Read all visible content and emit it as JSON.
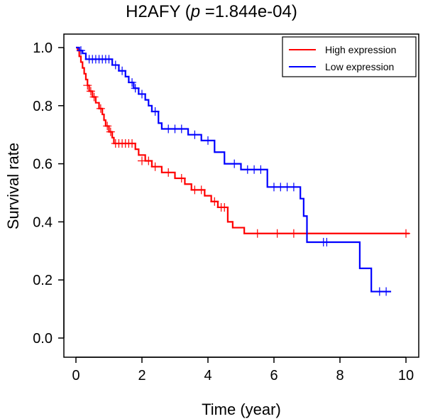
{
  "chart_data": {
    "type": "line",
    "title": {
      "gene": "H2AFY (",
      "p_symbol": "p",
      "p_value": " =1.844e-04)"
    },
    "xlabel": "Time (year)",
    "ylabel": "Survival rate",
    "xlim": [
      0,
      10
    ],
    "ylim": [
      0,
      1
    ],
    "xticks": [
      "0",
      "2",
      "4",
      "6",
      "8",
      "10"
    ],
    "yticks": [
      "0.0",
      "0.2",
      "0.4",
      "0.6",
      "0.8",
      "1.0"
    ],
    "grid": false,
    "legend_position": "top-right",
    "series": [
      {
        "name": "High expression",
        "color": "#ff0000",
        "steps": [
          [
            0,
            1.0
          ],
          [
            0.05,
            0.99
          ],
          [
            0.1,
            0.97
          ],
          [
            0.15,
            0.95
          ],
          [
            0.2,
            0.93
          ],
          [
            0.25,
            0.91
          ],
          [
            0.3,
            0.89
          ],
          [
            0.35,
            0.87
          ],
          [
            0.4,
            0.85
          ],
          [
            0.5,
            0.83
          ],
          [
            0.6,
            0.81
          ],
          [
            0.7,
            0.79
          ],
          [
            0.8,
            0.77
          ],
          [
            0.85,
            0.75
          ],
          [
            0.9,
            0.73
          ],
          [
            1.0,
            0.71
          ],
          [
            1.1,
            0.69
          ],
          [
            1.15,
            0.67
          ],
          [
            1.8,
            0.65
          ],
          [
            1.9,
            0.63
          ],
          [
            2.1,
            0.61
          ],
          [
            2.3,
            0.59
          ],
          [
            2.6,
            0.57
          ],
          [
            3.0,
            0.55
          ],
          [
            3.3,
            0.53
          ],
          [
            3.5,
            0.51
          ],
          [
            3.9,
            0.49
          ],
          [
            4.1,
            0.47
          ],
          [
            4.3,
            0.45
          ],
          [
            4.6,
            0.4
          ],
          [
            4.75,
            0.38
          ],
          [
            5.1,
            0.36
          ],
          [
            10.1,
            0.36
          ]
        ],
        "censored": [
          [
            0.35,
            0.87
          ],
          [
            0.45,
            0.85
          ],
          [
            0.55,
            0.83
          ],
          [
            0.75,
            0.79
          ],
          [
            0.95,
            0.73
          ],
          [
            1.05,
            0.71
          ],
          [
            1.2,
            0.67
          ],
          [
            1.3,
            0.67
          ],
          [
            1.4,
            0.67
          ],
          [
            1.5,
            0.67
          ],
          [
            1.6,
            0.67
          ],
          [
            1.7,
            0.67
          ],
          [
            2.0,
            0.61
          ],
          [
            2.2,
            0.61
          ],
          [
            2.4,
            0.59
          ],
          [
            2.8,
            0.57
          ],
          [
            3.2,
            0.55
          ],
          [
            3.6,
            0.51
          ],
          [
            3.8,
            0.51
          ],
          [
            4.2,
            0.47
          ],
          [
            4.4,
            0.45
          ],
          [
            4.5,
            0.45
          ],
          [
            5.5,
            0.36
          ],
          [
            6.1,
            0.36
          ],
          [
            6.6,
            0.36
          ],
          [
            7.0,
            0.36
          ],
          [
            10.0,
            0.36
          ]
        ]
      },
      {
        "name": "Low expression",
        "color": "#0000ff",
        "steps": [
          [
            0,
            1.0
          ],
          [
            0.1,
            0.99
          ],
          [
            0.2,
            0.98
          ],
          [
            0.3,
            0.96
          ],
          [
            1.1,
            0.94
          ],
          [
            1.3,
            0.92
          ],
          [
            1.5,
            0.9
          ],
          [
            1.6,
            0.88
          ],
          [
            1.75,
            0.86
          ],
          [
            1.9,
            0.84
          ],
          [
            2.1,
            0.82
          ],
          [
            2.2,
            0.8
          ],
          [
            2.3,
            0.78
          ],
          [
            2.5,
            0.74
          ],
          [
            2.6,
            0.72
          ],
          [
            3.4,
            0.7
          ],
          [
            3.8,
            0.68
          ],
          [
            4.2,
            0.64
          ],
          [
            4.5,
            0.6
          ],
          [
            5.0,
            0.58
          ],
          [
            5.8,
            0.52
          ],
          [
            6.8,
            0.48
          ],
          [
            6.9,
            0.42
          ],
          [
            7.0,
            0.33
          ],
          [
            8.6,
            0.24
          ],
          [
            8.95,
            0.16
          ],
          [
            9.55,
            0.16
          ]
        ],
        "censored": [
          [
            0.15,
            0.99
          ],
          [
            0.4,
            0.96
          ],
          [
            0.5,
            0.96
          ],
          [
            0.6,
            0.96
          ],
          [
            0.7,
            0.96
          ],
          [
            0.8,
            0.96
          ],
          [
            0.9,
            0.96
          ],
          [
            1.0,
            0.96
          ],
          [
            1.2,
            0.94
          ],
          [
            1.4,
            0.92
          ],
          [
            1.7,
            0.88
          ],
          [
            1.8,
            0.86
          ],
          [
            2.0,
            0.84
          ],
          [
            2.4,
            0.78
          ],
          [
            2.8,
            0.72
          ],
          [
            3.0,
            0.72
          ],
          [
            3.2,
            0.72
          ],
          [
            3.6,
            0.7
          ],
          [
            4.0,
            0.68
          ],
          [
            4.8,
            0.6
          ],
          [
            5.2,
            0.58
          ],
          [
            5.4,
            0.58
          ],
          [
            5.6,
            0.58
          ],
          [
            6.0,
            0.52
          ],
          [
            6.2,
            0.52
          ],
          [
            6.4,
            0.52
          ],
          [
            6.6,
            0.52
          ],
          [
            7.5,
            0.33
          ],
          [
            7.6,
            0.33
          ],
          [
            9.2,
            0.16
          ],
          [
            9.4,
            0.16
          ]
        ]
      }
    ]
  }
}
